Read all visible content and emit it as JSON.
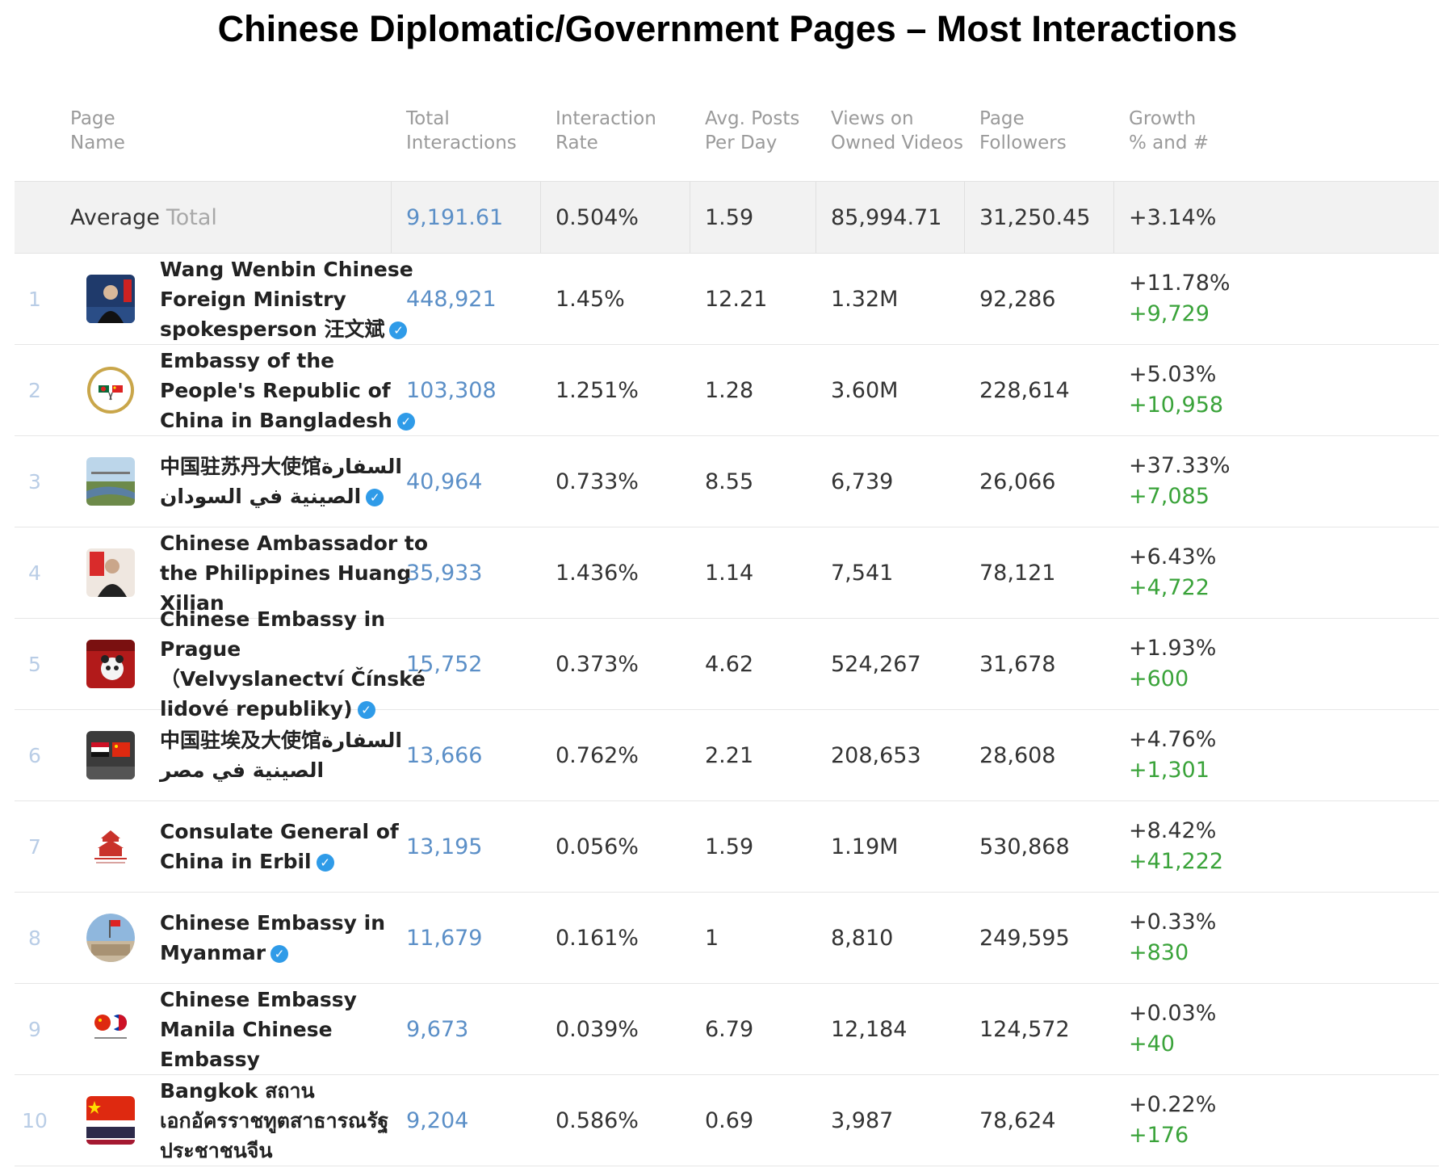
{
  "title": "Chinese Diplomatic/Government Pages – Most Interactions",
  "headers": {
    "page_name": "Page\nName",
    "total_interactions": "Total\nInteractions",
    "interaction_rate": "Interaction\nRate",
    "avg_posts": "Avg. Posts\nPer Day",
    "views": "Views on\nOwned Videos",
    "followers": "Page\nFollowers",
    "growth": "Growth\n% and #"
  },
  "average": {
    "label": "Average",
    "sublabel": "Total",
    "total_interactions": "9,191.61",
    "interaction_rate": "0.504%",
    "avg_posts": "1.59",
    "views": "85,994.71",
    "followers": "31,250.45",
    "growth": "+3.14%"
  },
  "rows": [
    {
      "rank": "1",
      "name": "Wang Wenbin Chinese Foreign Ministry spokesperson 汪文斌",
      "verified": true,
      "interactions": "448,921",
      "rate": "1.45%",
      "posts": "12.21",
      "views": "1.32M",
      "followers": "92,286",
      "growth_pct": "+11.78%",
      "growth_num": "+9,729",
      "avatar": "portrait-blue"
    },
    {
      "rank": "2",
      "name": "Embassy of the People's Republic of China in Bangladesh",
      "verified": true,
      "interactions": "103,308",
      "rate": "1.251%",
      "posts": "1.28",
      "views": "3.60M",
      "followers": "228,614",
      "growth_pct": "+5.03%",
      "growth_num": "+10,958",
      "avatar": "flags-seal"
    },
    {
      "rank": "3",
      "name": "中国驻苏丹大使馆السفارة الصينية في السودان",
      "verified": true,
      "interactions": "40,964",
      "rate": "0.733%",
      "posts": "8.55",
      "views": "6,739",
      "followers": "26,066",
      "growth_pct": "+37.33%",
      "growth_num": "+7,085",
      "avatar": "landscape"
    },
    {
      "rank": "4",
      "name": "Chinese Ambassador to the Philippines Huang Xilian",
      "verified": false,
      "interactions": "35,933",
      "rate": "1.436%",
      "posts": "1.14",
      "views": "7,541",
      "followers": "78,121",
      "growth_pct": "+6.43%",
      "growth_num": "+4,722",
      "avatar": "portrait-red"
    },
    {
      "rank": "5",
      "name": "Chinese Embassy in Prague （Velvyslanectví Čínské lidové republiky)",
      "verified": true,
      "interactions": "15,752",
      "rate": "0.373%",
      "posts": "4.62",
      "views": "524,267",
      "followers": "31,678",
      "growth_pct": "+1.93%",
      "growth_num": "+600",
      "avatar": "panda"
    },
    {
      "rank": "6",
      "name": "中国驻埃及大使馆السفارة الصينية في مصر",
      "verified": false,
      "interactions": "13,666",
      "rate": "0.762%",
      "posts": "2.21",
      "views": "208,653",
      "followers": "28,608",
      "growth_pct": "+4.76%",
      "growth_num": "+1,301",
      "avatar": "flags-egypt"
    },
    {
      "rank": "7",
      "name": "Consulate General of China in Erbil",
      "verified": true,
      "interactions": "13,195",
      "rate": "0.056%",
      "posts": "1.59",
      "views": "1.19M",
      "followers": "530,868",
      "growth_pct": "+8.42%",
      "growth_num": "+41,222",
      "avatar": "building-logo"
    },
    {
      "rank": "8",
      "name": "Chinese Embassy in Myanmar",
      "verified": true,
      "interactions": "11,679",
      "rate": "0.161%",
      "posts": "1",
      "views": "8,810",
      "followers": "249,595",
      "growth_pct": "+0.33%",
      "growth_num": "+830",
      "avatar": "round-building"
    },
    {
      "rank": "9",
      "name": "Chinese Embassy Manila Chinese Embassy",
      "verified": false,
      "interactions": "9,673",
      "rate": "0.039%",
      "posts": "6.79",
      "views": "12,184",
      "followers": "124,572",
      "growth_pct": "+0.03%",
      "growth_num": "+40",
      "avatar": "two-circles"
    },
    {
      "rank": "10",
      "name": "Bangkok สถานเอกอัครราชทูตสาธารณรัฐประชาชนจีน",
      "verified": false,
      "interactions": "9,204",
      "rate": "0.586%",
      "posts": "0.69",
      "views": "3,987",
      "followers": "78,624",
      "growth_pct": "+0.22%",
      "growth_num": "+176",
      "avatar": "flags-thai"
    }
  ]
}
